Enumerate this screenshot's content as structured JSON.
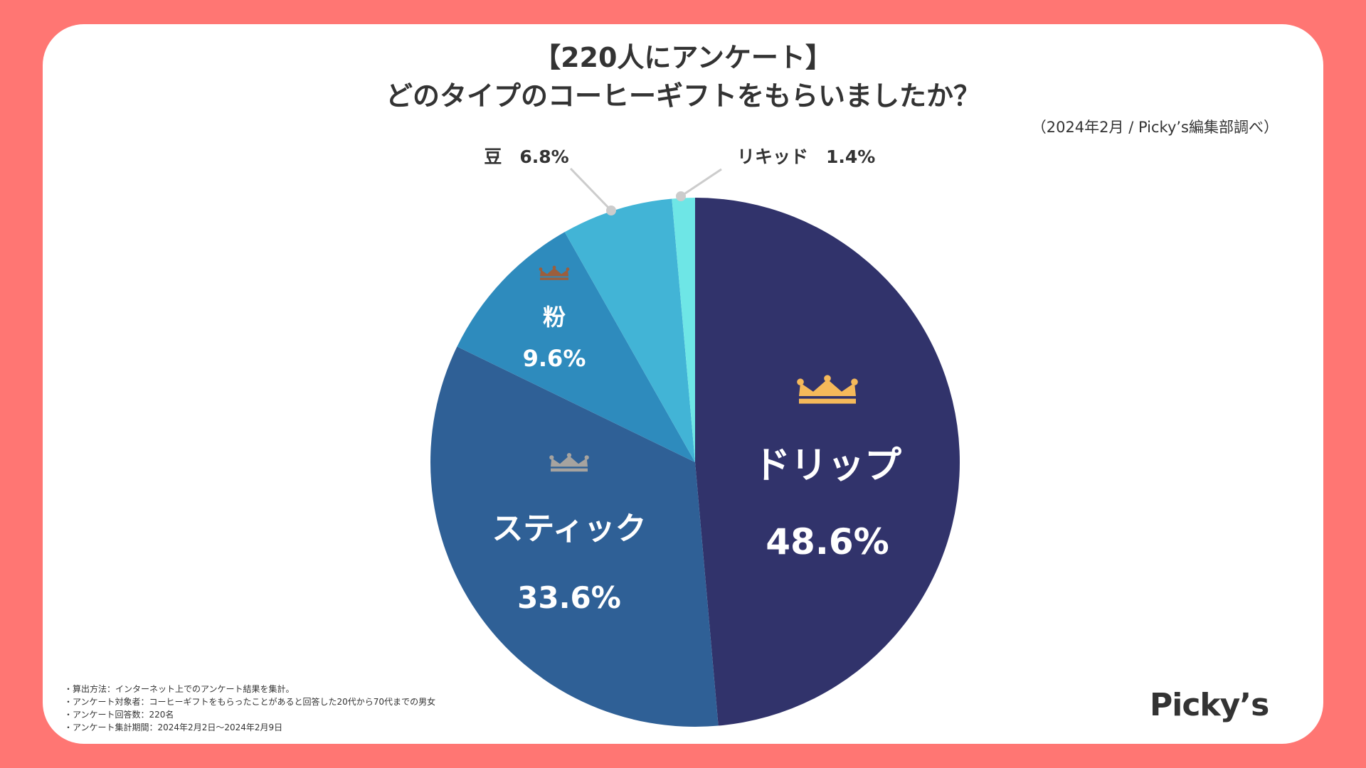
{
  "header": {
    "title_line1": "【220人にアンケート】",
    "title_line2": "どのタイプのコーヒーギフトをもらいましたか？",
    "source": "（2024年2月 / Picky’s編集部調べ）"
  },
  "chart_data": {
    "type": "pie",
    "title": "どのタイプのコーヒーギフトをもらいましたか？",
    "unit": "%",
    "slices": [
      {
        "label": "ドリップ",
        "value": 48.6,
        "value_text": "48.6%",
        "color": "#31336b",
        "rank": 1,
        "crown_color": "#f5b95a"
      },
      {
        "label": "スティック",
        "value": 33.6,
        "value_text": "33.6%",
        "color": "#2f6096",
        "rank": 2,
        "crown_color": "#a6a39f"
      },
      {
        "label": "粉",
        "value": 9.6,
        "value_text": "9.6%",
        "color": "#2e8bbd",
        "rank": 3,
        "crown_color": "#9c5e3c"
      },
      {
        "label": "豆",
        "value": 6.8,
        "value_text": "6.8%",
        "color": "#42b4d6",
        "callout_text": "豆　6.8%"
      },
      {
        "label": "リキッド",
        "value": 1.4,
        "value_text": "1.4%",
        "color": "#6ee6e6",
        "callout_text": "リキッド　1.4%"
      }
    ]
  },
  "notes": [
    "・算出方法：インターネット上でのアンケート結果を集計。",
    "・アンケート対象者：コーヒーギフトをもらったことがあると回答した20代から70代までの男女",
    "・アンケート回答数：220名",
    "・アンケート集計期間：2024年2月2日〜2024年2月9日"
  ],
  "brand": {
    "logo_text": "Picky’s"
  },
  "colors": {
    "background": "#ff7673",
    "card": "#ffffff",
    "text": "#333333",
    "leader": "#cccccc"
  }
}
